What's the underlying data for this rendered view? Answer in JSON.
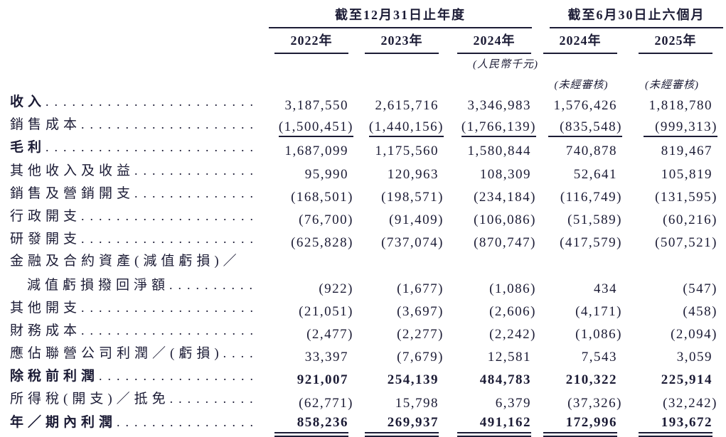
{
  "colors": {
    "ink": "#1b1b35",
    "background": "#ffffff"
  },
  "table": {
    "column_groups": [
      {
        "label": "截至12月31日止年度",
        "years": [
          "2022年",
          "2023年",
          "2024年"
        ]
      },
      {
        "label": "截至6月30日止六個月",
        "years": [
          "2024年",
          "2025年"
        ]
      }
    ],
    "currency_note": "(人民幣千元)",
    "unaudited_notes": [
      "(未經審核)",
      "(未經審核)"
    ],
    "rows": [
      {
        "label": "收入",
        "bold": true,
        "dots": true,
        "values": [
          "3,187,550",
          "2,615,716",
          "3,346,983",
          "1,576,426",
          "1,818,780"
        ]
      },
      {
        "label": "銷售成本",
        "dots": true,
        "rule_below": "single",
        "values": [
          "(1,500,451)",
          "(1,440,156)",
          "(1,766,139)",
          "(835,548)",
          "(999,313)"
        ]
      },
      {
        "label": "毛利",
        "bold": true,
        "dots": true,
        "values": [
          "1,687,099",
          "1,175,560",
          "1,580,844",
          "740,878",
          "819,467"
        ]
      },
      {
        "label": "其他收入及收益",
        "dots": true,
        "values": [
          "95,990",
          "120,963",
          "108,309",
          "52,641",
          "105,819"
        ]
      },
      {
        "label": "銷售及營銷開支",
        "dots": true,
        "values": [
          "(168,501)",
          "(198,571)",
          "(234,184)",
          "(116,749)",
          "(131,595)"
        ]
      },
      {
        "label": "行政開支",
        "dots": true,
        "values": [
          "(76,700)",
          "(91,409)",
          "(106,086)",
          "(51,589)",
          "(60,216)"
        ]
      },
      {
        "label": "研發開支",
        "dots": true,
        "values": [
          "(625,828)",
          "(737,074)",
          "(870,747)",
          "(417,579)",
          "(507,521)"
        ]
      },
      {
        "label": "金融及合約資產(減值虧損)／",
        "dots": false,
        "values": []
      },
      {
        "label": "減值虧損撥回淨額",
        "indent": true,
        "dots": true,
        "values": [
          "(922)",
          "(1,677)",
          "(1,086)",
          "434",
          "(547)"
        ]
      },
      {
        "label": "其他開支",
        "dots": true,
        "values": [
          "(21,051)",
          "(3,697)",
          "(2,606)",
          "(4,171)",
          "(458)"
        ]
      },
      {
        "label": "財務成本",
        "dots": true,
        "values": [
          "(2,477)",
          "(2,277)",
          "(2,242)",
          "(1,086)",
          "(2,094)"
        ]
      },
      {
        "label": "應佔聯營公司利潤／(虧損)",
        "dots": true,
        "values": [
          "33,397",
          "(7,679)",
          "12,581",
          "7,543",
          "3,059"
        ]
      },
      {
        "label": "除稅前利潤",
        "bold": true,
        "bold_values": true,
        "dots": true,
        "values": [
          "921,007",
          "254,139",
          "484,783",
          "210,322",
          "225,914"
        ]
      },
      {
        "label": "所得稅(開支)／抵免",
        "dots": true,
        "values": [
          "(62,771)",
          "15,798",
          "6,379",
          "(37,326)",
          "(32,242)"
        ]
      },
      {
        "label": "年／期內利潤",
        "bold": true,
        "bold_values": true,
        "dots": true,
        "rule_below": "double",
        "values": [
          "858,236",
          "269,937",
          "491,162",
          "172,996",
          "193,672"
        ]
      }
    ]
  }
}
